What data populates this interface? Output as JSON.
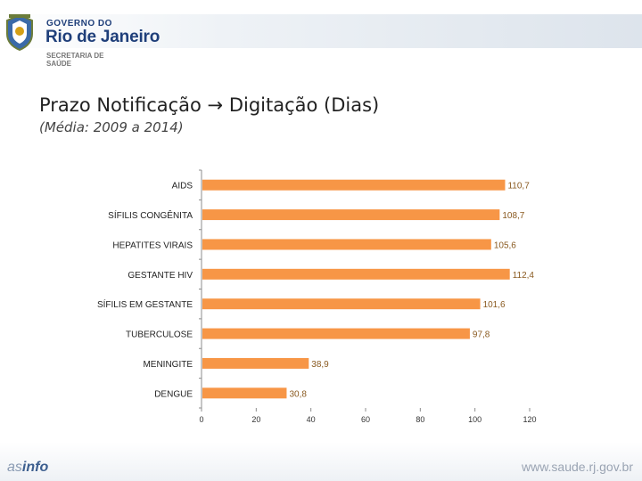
{
  "header": {
    "gov_line1": "GOVERNO DO",
    "gov_line2": "Rio de Janeiro",
    "secretaria": "SECRETARIA DE SAÚDE"
  },
  "slide": {
    "title": "Prazo Notificação → Digitação (Dias)",
    "subtitle": "(Média: 2009 a 2014)"
  },
  "footer": {
    "logo_as": "as",
    "logo_info": "info",
    "url": "www.saude.rj.gov.br"
  },
  "colors": {
    "bar": "#f79646",
    "label": "#8a5a20",
    "axis": "#8c8c8c",
    "brand": "#1f3f7a"
  },
  "chart_data": {
    "type": "bar",
    "orientation": "horizontal",
    "title": "Prazo Notificação → Digitação (Dias)",
    "subtitle": "(Média: 2009 a 2014)",
    "categories": [
      "AIDS",
      "SÍFILIS CONGÊNITA",
      "HEPATITES VIRAIS",
      "GESTANTE HIV",
      "SÍFILIS EM GESTANTE",
      "TUBERCULOSE",
      "MENINGITE",
      "DENGUE"
    ],
    "values": [
      110.7,
      108.7,
      105.6,
      112.4,
      101.6,
      97.8,
      38.9,
      30.8
    ],
    "value_labels": [
      "110,7",
      "108,7",
      "105,6",
      "112,4",
      "101,6",
      "97,8",
      "38,9",
      "30,8"
    ],
    "xlim": [
      0,
      120
    ],
    "xticks": [
      0,
      20,
      40,
      60,
      80,
      100,
      120
    ],
    "xlabel": "",
    "ylabel": "",
    "grid": false
  }
}
